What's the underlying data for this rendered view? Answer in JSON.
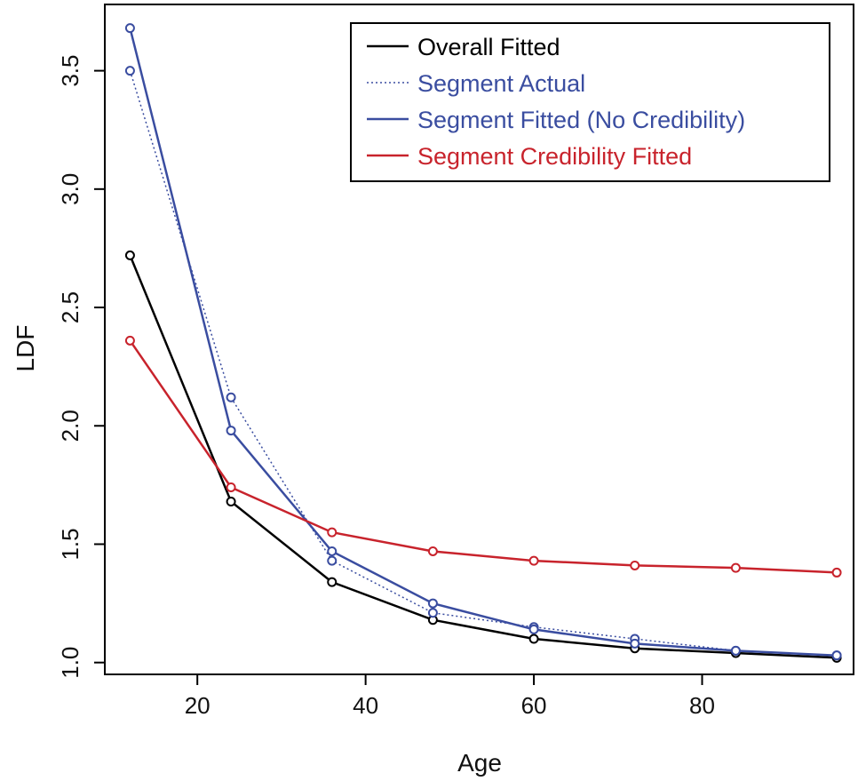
{
  "chart_data": {
    "type": "line",
    "title": "",
    "xlabel": "Age",
    "ylabel": "LDF",
    "xlim": [
      9,
      98
    ],
    "ylim": [
      0.95,
      3.78
    ],
    "xticks": [
      20,
      40,
      60,
      80
    ],
    "yticks": [
      1.0,
      1.5,
      2.0,
      2.5,
      3.0,
      3.5
    ],
    "x": [
      12,
      24,
      36,
      48,
      60,
      72,
      84,
      96
    ],
    "legend_position": "top-right",
    "series": [
      {
        "name": "Overall Fitted",
        "color": "#000000",
        "style": "solid",
        "values": [
          2.72,
          1.68,
          1.34,
          1.18,
          1.1,
          1.06,
          1.04,
          1.02
        ]
      },
      {
        "name": "Segment Actual",
        "color": "#3a4da0",
        "style": "dotted",
        "values": [
          3.5,
          2.12,
          1.43,
          1.21,
          1.15,
          1.1,
          1.05,
          1.03
        ]
      },
      {
        "name": "Segment Fitted (No Credibility)",
        "color": "#3a4da0",
        "style": "solid",
        "values": [
          3.68,
          1.98,
          1.47,
          1.25,
          1.14,
          1.08,
          1.05,
          1.03
        ]
      },
      {
        "name": "Segment Credibility Fitted",
        "color": "#c8232c",
        "style": "solid",
        "values": [
          2.36,
          1.74,
          1.55,
          1.47,
          1.43,
          1.41,
          1.4,
          1.38
        ]
      }
    ]
  }
}
